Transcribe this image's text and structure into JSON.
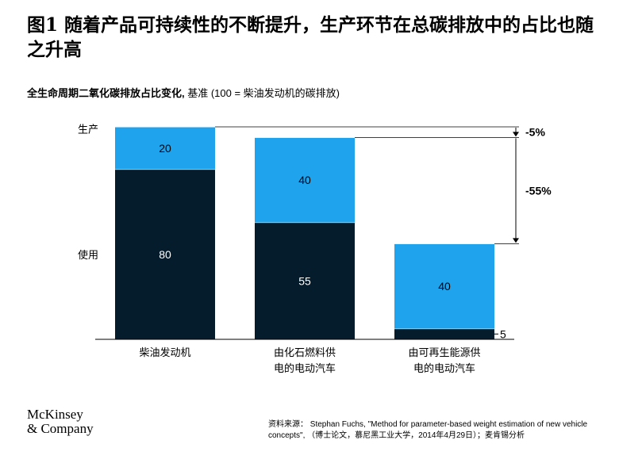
{
  "title": "图1 随着产品可持续性的不断提升，生产环节在总碳排放中的占比也随之升高",
  "subtitle": {
    "bold": "全生命周期二氧化碳排放占比变化,",
    "rest": " 基准 (100 = 柴油发动机的碳排放)"
  },
  "colors": {
    "production": "#1fa3ec",
    "use": "#051c2c",
    "axis": "#000000"
  },
  "chart_data": {
    "type": "bar",
    "stacked": true,
    "categories": [
      [
        "柴油发动机"
      ],
      [
        "由化石燃料供",
        "电的电动汽车"
      ],
      [
        "由可再生能源供",
        "电的电动汽车"
      ]
    ],
    "series": [
      {
        "name": "使用",
        "values": [
          80,
          55,
          5
        ],
        "labels": [
          "80",
          "55",
          "5"
        ]
      },
      {
        "name": "生产",
        "values": [
          20,
          40,
          40
        ],
        "labels": [
          "20",
          "40",
          "40"
        ]
      }
    ],
    "ylim": [
      0,
      100
    ],
    "annotations": [
      {
        "text": "-5%",
        "from_total": 100,
        "to_total": 95
      },
      {
        "text": "-55%",
        "from_total": 95,
        "to_total": 45
      }
    ]
  },
  "logo": {
    "line1": "McKinsey",
    "line2": "& Company"
  },
  "source": "资料来源： Stephan Fuchs, \"Method for parameter-based weight estimation of new vehicle concepts\", （博士论文，慕尼黑工业大学，2014年4月29日）；麦肯锡分析"
}
